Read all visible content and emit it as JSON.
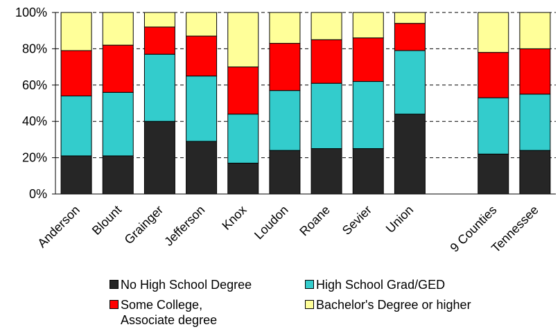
{
  "chart_data": {
    "type": "bar",
    "stacked": true,
    "categories": [
      "Anderson",
      "Blount",
      "Grainger",
      "Jefferson",
      "Knox",
      "Loudon",
      "Roane",
      "Sevier",
      "Union",
      "",
      "9 Counties",
      "Tennessee"
    ],
    "series": [
      {
        "name": "No High School Degree",
        "color": "#262626",
        "values": [
          21,
          21,
          40,
          29,
          17,
          24,
          25,
          25,
          44,
          null,
          22,
          24
        ]
      },
      {
        "name": "High School Grad/GED",
        "color": "#33CCCC",
        "values": [
          33,
          35,
          37,
          36,
          27,
          33,
          36,
          37,
          35,
          null,
          31,
          31
        ]
      },
      {
        "name": "Some College,\nAssociate degree",
        "color": "#FF0000",
        "values": [
          25,
          26,
          15,
          22,
          26,
          26,
          24,
          24,
          15,
          null,
          25,
          25
        ]
      },
      {
        "name": "Bachelor's Degree or higher",
        "color": "#FFFF99",
        "values": [
          21,
          18,
          8,
          13,
          30,
          17,
          15,
          14,
          6,
          null,
          22,
          20
        ]
      }
    ],
    "yticks": [
      "0%",
      "20%",
      "40%",
      "60%",
      "80%",
      "100%"
    ],
    "ylim": [
      0,
      100
    ],
    "grid": "dashed horizontal",
    "legend_position": "bottom"
  },
  "legend": {
    "items": [
      {
        "label": "No High School Degree",
        "color": "#262626"
      },
      {
        "label": "High School Grad/GED",
        "color": "#33CCCC"
      },
      {
        "label": "Some College,\nAssociate degree",
        "color": "#FF0000"
      },
      {
        "label": "Bachelor's Degree or higher",
        "color": "#FFFF99"
      }
    ]
  }
}
